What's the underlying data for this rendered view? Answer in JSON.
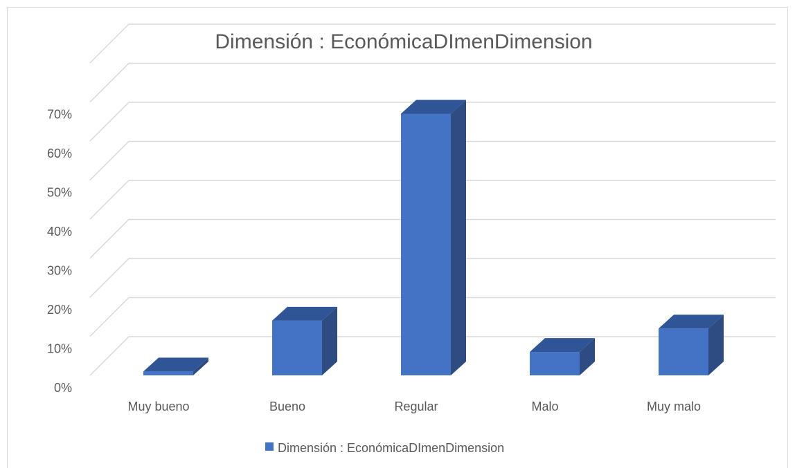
{
  "chart_data": {
    "type": "bar",
    "title": "Dimensión : EconómicaDImenDimension",
    "categories": [
      "Muy bueno",
      "Bueno",
      "Regular",
      "Malo",
      "Muy malo"
    ],
    "series": [
      {
        "name": "Dimensión : EconómicaDImenDimension",
        "values": [
          0.01,
          0.14,
          0.67,
          0.06,
          0.12
        ],
        "color": "#4472c4",
        "top_color": "#2f5597",
        "side_color": "#2e4c82"
      }
    ],
    "yticks": [
      "0%",
      "10%",
      "20%",
      "30%",
      "40%",
      "50%",
      "60%",
      "70%"
    ],
    "ylim": [
      0,
      0.7
    ],
    "grid": true,
    "legend_position": "bottom",
    "gridline_color": "#d9d9d9"
  }
}
